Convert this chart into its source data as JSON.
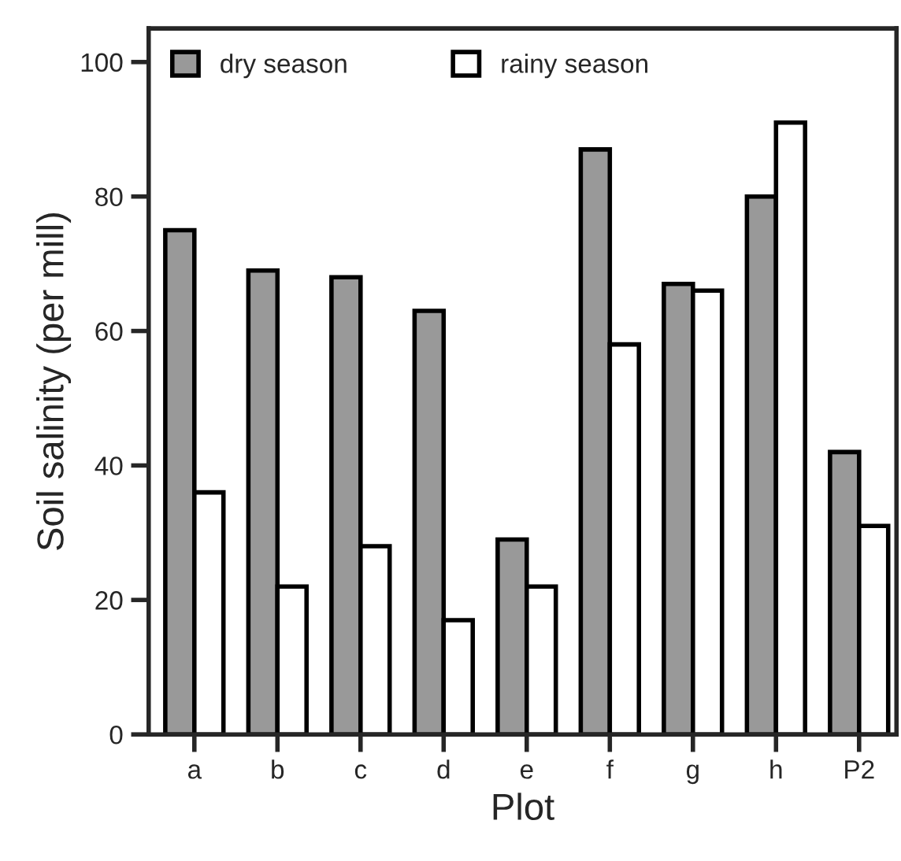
{
  "chart_data": {
    "type": "bar",
    "xlabel": "Plot",
    "ylabel": "Soil salinity (per mill)",
    "categories": [
      "a",
      "b",
      "c",
      "d",
      "e",
      "f",
      "g",
      "h",
      "P2"
    ],
    "series": [
      {
        "name": "dry season",
        "color": "#999999",
        "values": [
          75,
          69,
          68,
          63,
          29,
          87,
          67,
          80,
          42
        ]
      },
      {
        "name": "rainy season",
        "color": "#ffffff",
        "values": [
          36,
          22,
          28,
          17,
          22,
          58,
          66,
          91,
          31
        ]
      }
    ],
    "ylim": [
      0,
      105
    ],
    "yticks": [
      0,
      20,
      40,
      60,
      80,
      100
    ],
    "grid": false,
    "legend": "top left"
  }
}
